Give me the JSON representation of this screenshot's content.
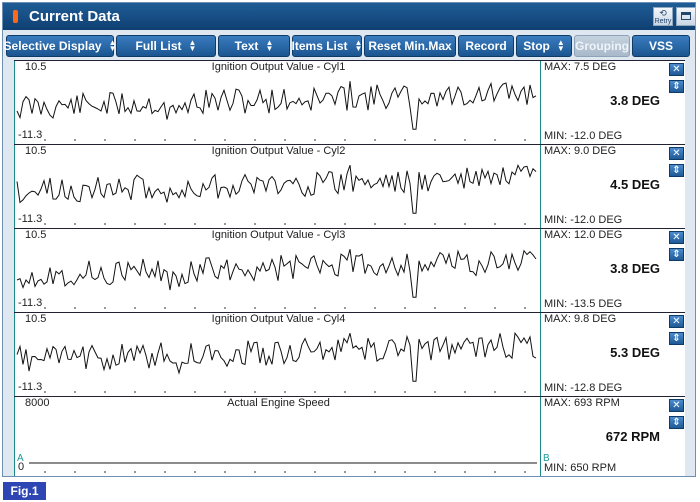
{
  "window": {
    "title": "Current Data",
    "retry_label": "Retry"
  },
  "toolbar": {
    "selective_display": "Selective Display",
    "full_list": "Full List",
    "text": "Text",
    "items_list": "Items List",
    "reset_minmax": "Reset Min.Max",
    "record": "Record",
    "stop": "Stop",
    "grouping": "Grouping",
    "vss": "VSS"
  },
  "panels": [
    {
      "title": "Ignition Output Value - Cyl1",
      "ymax_label": "10.5",
      "ymin_label": "-11.3",
      "max_text": "MAX:   7.5 DEG",
      "current_text": "3.8 DEG",
      "min_text": "MIN: -12.0 DEG",
      "seed": 11
    },
    {
      "title": "Ignition Output Value - Cyl2",
      "ymax_label": "10.5",
      "ymin_label": "-11.3",
      "max_text": "MAX:   9.0 DEG",
      "current_text": "4.5 DEG",
      "min_text": "MIN: -12.0 DEG",
      "seed": 23
    },
    {
      "title": "Ignition Output Value - Cyl3",
      "ymax_label": "10.5",
      "ymin_label": "-11.3",
      "max_text": "MAX:  12.0 DEG",
      "current_text": "3.8 DEG",
      "min_text": "MIN: -13.5 DEG",
      "seed": 37
    },
    {
      "title": "Ignition Output Value - Cyl4",
      "ymax_label": "10.5",
      "ymin_label": "-11.3",
      "max_text": "MAX:   9.8 DEG",
      "current_text": "5.3 DEG",
      "min_text": "MIN: -12.8 DEG",
      "seed": 53
    },
    {
      "title": "Actual Engine Speed",
      "ymax_label": "8000",
      "ymin_label": "0",
      "max_text": "MAX:    693 RPM",
      "current_text": "672 RPM",
      "min_text": "MIN:   650 RPM",
      "marker_a": "A",
      "marker_b": "B"
    }
  ],
  "figure_label": "Fig.1",
  "icons": {
    "close": "close-icon",
    "move": "up-down-arrow-icon"
  }
}
